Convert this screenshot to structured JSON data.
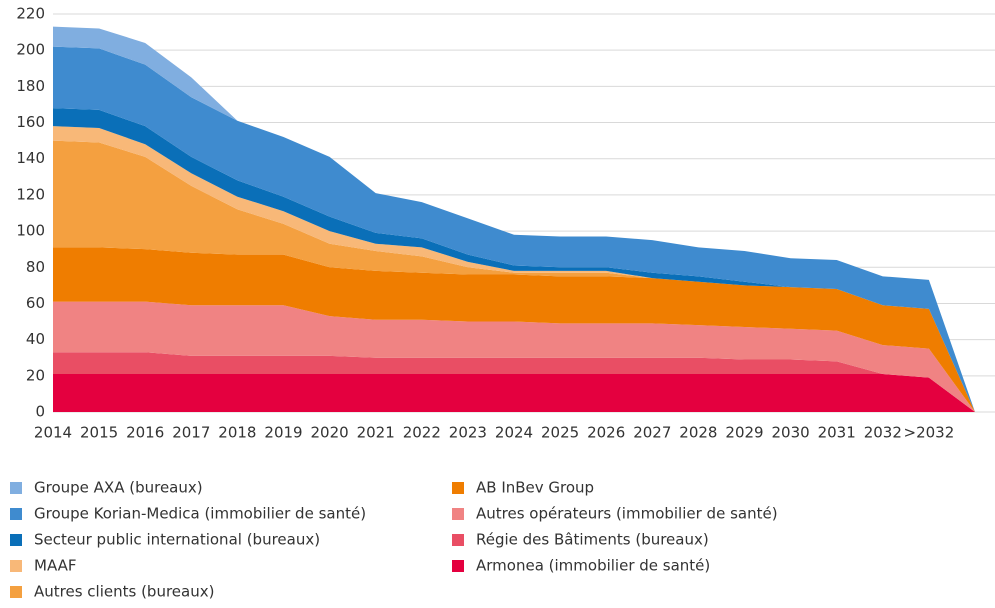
{
  "chart_data": {
    "type": "stacked_area",
    "categories": [
      "2014",
      "2015",
      "2016",
      "2017",
      "2018",
      "2019",
      "2020",
      "2021",
      "2022",
      "2023",
      "2024",
      "2025",
      "2026",
      "2027",
      "2028",
      "2029",
      "2030",
      "2031",
      "2032",
      ">2032",
      null
    ],
    "series": [
      {
        "name": "Armonea (immobilier de santé)",
        "color": "#e4003f",
        "values": [
          21,
          21,
          21,
          21,
          21,
          21,
          21,
          21,
          21,
          21,
          21,
          21,
          21,
          21,
          21,
          21,
          21,
          21,
          21,
          19,
          0
        ]
      },
      {
        "name": "Régie des Bâtiments (bureaux)",
        "color": "#e94e64",
        "values": [
          12,
          12,
          12,
          10,
          10,
          10,
          10,
          9,
          9,
          9,
          9,
          9,
          9,
          9,
          9,
          8,
          8,
          7,
          0,
          0,
          0
        ]
      },
      {
        "name": "Autres opérateurs (immobilier de santé)",
        "color": "#f08383",
        "values": [
          28,
          28,
          28,
          28,
          28,
          28,
          22,
          21,
          21,
          20,
          20,
          19,
          19,
          19,
          18,
          18,
          17,
          17,
          16,
          16,
          0
        ]
      },
      {
        "name": "AB InBev  Group",
        "color": "#ef7d00",
        "values": [
          30,
          30,
          29,
          29,
          28,
          28,
          27,
          27,
          26,
          26,
          26,
          26,
          26,
          25,
          24,
          23,
          23,
          23,
          22,
          22,
          0
        ]
      },
      {
        "name": "Autres clients (bureaux)",
        "color": "#f4a040",
        "values": [
          59,
          58,
          51,
          37,
          25,
          17,
          13,
          11,
          9,
          4,
          1,
          2,
          2,
          0,
          0,
          0,
          0,
          0,
          0,
          0,
          0
        ]
      },
      {
        "name": "MAAF",
        "color": "#f8b878",
        "values": [
          8,
          8,
          7,
          7,
          7,
          7,
          7,
          4,
          5,
          3,
          1,
          1,
          1,
          0,
          0,
          0,
          0,
          0,
          0,
          0,
          0
        ]
      },
      {
        "name": "Secteur public international (bureaux)",
        "color": "#0a6fb8",
        "values": [
          10,
          10,
          10,
          9,
          9,
          8,
          8,
          6,
          5,
          4,
          3,
          2,
          2,
          3,
          3,
          2,
          0,
          0,
          0,
          0,
          0
        ]
      },
      {
        "name": "Groupe Korian-Medica (immobilier de santé)",
        "color": "#3f8bcf",
        "values": [
          34,
          34,
          34,
          33,
          33,
          33,
          33,
          22,
          20,
          20,
          17,
          17,
          17,
          18,
          16,
          17,
          16,
          16,
          16,
          16,
          0
        ]
      },
      {
        "name": "Groupe AXA (bureaux)",
        "color": "#80aee0",
        "values": [
          11,
          11,
          12,
          11,
          0,
          0,
          0,
          0,
          0,
          0,
          0,
          0,
          0,
          0,
          0,
          0,
          0,
          0,
          0,
          0,
          0
        ]
      }
    ],
    "ylim": [
      0,
      220
    ],
    "yticks": [
      0,
      20,
      40,
      60,
      80,
      100,
      120,
      140,
      160,
      180,
      200,
      220
    ],
    "grid": true
  }
}
